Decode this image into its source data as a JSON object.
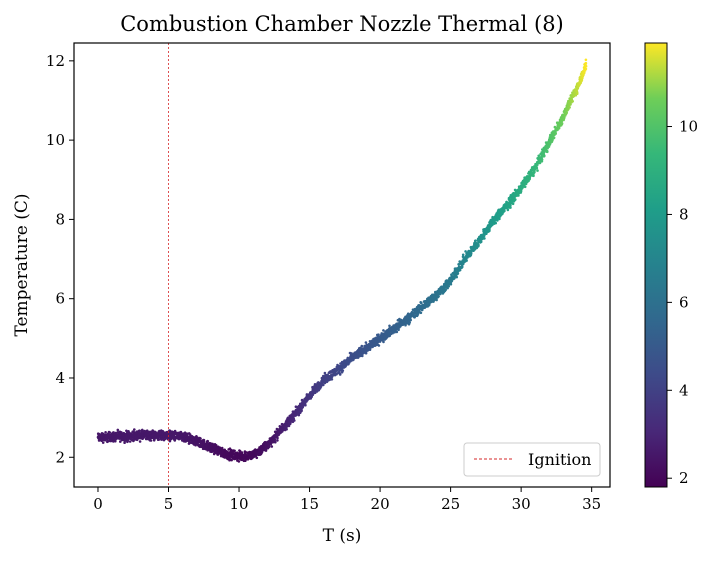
{
  "chart_data": {
    "type": "scatter",
    "title": "Combustion Chamber Nozzle Thermal (8)",
    "xlabel": "T (s)",
    "ylabel": "Temperature (C)",
    "xlim": [
      -1.7,
      36.3
    ],
    "ylim": [
      1.25,
      12.45
    ],
    "x_ticks": [
      0,
      5,
      10,
      15,
      20,
      25,
      30,
      35
    ],
    "y_ticks": [
      2,
      4,
      6,
      8,
      10,
      12
    ],
    "grid": false,
    "legend": {
      "position": "lower-right",
      "entries": [
        "Ignition"
      ]
    },
    "vline": {
      "label": "Ignition",
      "x": 5,
      "color": "#d62728",
      "style": "dashed"
    },
    "colormap": "viridis",
    "colorbar": {
      "range": [
        1.8,
        11.9
      ],
      "ticks": [
        2,
        4,
        6,
        8,
        10
      ]
    },
    "series": [
      {
        "x": [
          0,
          1,
          2,
          3,
          4,
          5,
          6,
          7,
          8,
          9,
          10,
          11,
          12,
          13,
          14,
          15,
          16,
          17,
          18,
          19,
          20,
          21,
          22,
          23,
          24,
          25,
          26,
          27,
          28,
          29,
          30,
          31,
          32,
          33,
          34,
          34.6
        ],
        "y": [
          2.5,
          2.52,
          2.53,
          2.55,
          2.55,
          2.56,
          2.5,
          2.4,
          2.25,
          2.1,
          2.02,
          2.05,
          2.3,
          2.7,
          3.1,
          3.55,
          3.95,
          4.2,
          4.5,
          4.75,
          5.0,
          5.25,
          5.5,
          5.8,
          6.1,
          6.45,
          7.0,
          7.45,
          7.95,
          8.35,
          8.8,
          9.3,
          9.95,
          10.6,
          11.35,
          11.9
        ],
        "noise_band": 0.1
      }
    ]
  }
}
